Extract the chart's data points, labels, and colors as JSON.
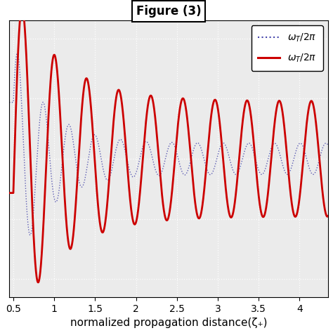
{
  "title": "Figure (3)",
  "xlabel": "normalized propagation distance(ζ₊)",
  "xlim": [
    0.45,
    4.35
  ],
  "ylim": [
    -1.15,
    1.15
  ],
  "xticks": [
    0.5,
    1.0,
    1.5,
    2.0,
    2.5,
    3.0,
    3.5,
    4.0
  ],
  "xtick_labels": [
    "0.5",
    "1",
    "1.5",
    "2",
    "2.5",
    "3",
    "3.5",
    "4"
  ],
  "background_color": "#ebebeb",
  "grid_color": "#ffffff",
  "line1_color": "#4444aa",
  "line2_color": "#cc0000",
  "figsize": [
    4.74,
    4.74
  ],
  "dpi": 100,
  "red_freq": 16.0,
  "red_decay": 1.8,
  "red_steady": 0.48,
  "red_init_amp": 0.95,
  "blue_freq": 20.0,
  "blue_decay": 2.5,
  "blue_steady": 0.0,
  "blue_init_amp": 0.85
}
